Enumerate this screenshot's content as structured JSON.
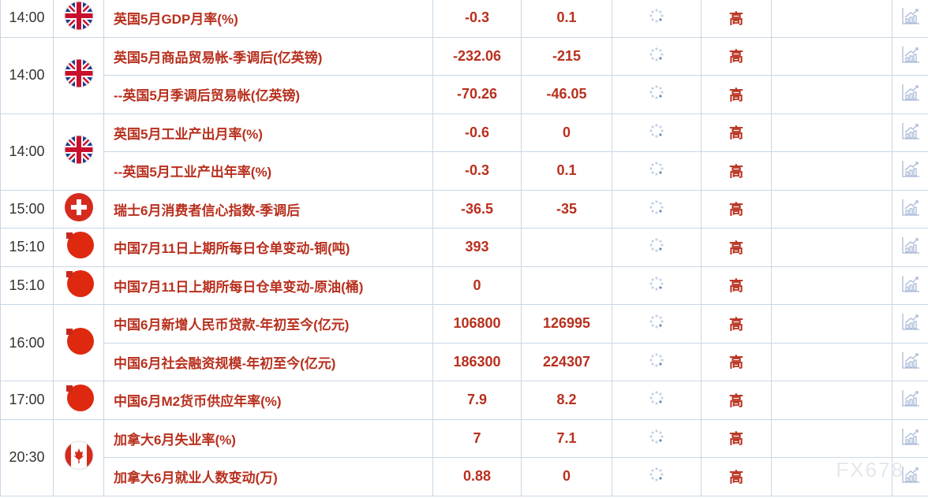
{
  "colors": {
    "accent": "#b8301e",
    "grid": "#c9d7e6"
  },
  "groups": [
    {
      "time": "14:00",
      "flag": "uk-flag-icon",
      "rows": [
        {
          "event": "英国5月GDP月率(%)",
          "previous": "-0.3",
          "forecast": "0.1",
          "importance": "高"
        }
      ]
    },
    {
      "time": "14:00",
      "flag": "uk-flag-icon",
      "rows": [
        {
          "event": "英国5月商品贸易帐-季调后(亿英镑)",
          "previous": "-232.06",
          "forecast": "-215",
          "importance": "高"
        },
        {
          "event": "--英国5月季调后贸易帐(亿英镑)",
          "previous": "-70.26",
          "forecast": "-46.05",
          "importance": "高"
        }
      ]
    },
    {
      "time": "14:00",
      "flag": "uk-flag-icon",
      "rows": [
        {
          "event": "英国5月工业产出月率(%)",
          "previous": "-0.6",
          "forecast": "0",
          "importance": "高"
        },
        {
          "event": "--英国5月工业产出年率(%)",
          "previous": "-0.3",
          "forecast": "0.1",
          "importance": "高"
        }
      ]
    },
    {
      "time": "15:00",
      "flag": "switzerland-flag-icon",
      "rows": [
        {
          "event": "瑞士6月消费者信心指数-季调后",
          "previous": "-36.5",
          "forecast": "-35",
          "importance": "高"
        }
      ]
    },
    {
      "time": "15:10",
      "flag": "china-flag-icon",
      "rows": [
        {
          "event": "中国7月11日上期所每日仓单变动-铜(吨)",
          "previous": "393",
          "forecast": "",
          "importance": "高"
        }
      ]
    },
    {
      "time": "15:10",
      "flag": "china-flag-icon",
      "rows": [
        {
          "event": "中国7月11日上期所每日仓单变动-原油(桶)",
          "previous": "0",
          "forecast": "",
          "importance": "高"
        }
      ]
    },
    {
      "time": "16:00",
      "flag": "china-flag-icon",
      "rows": [
        {
          "event": "中国6月新增人民币贷款-年初至今(亿元)",
          "previous": "106800",
          "forecast": "126995",
          "importance": "高"
        },
        {
          "event": "中国6月社会融资规模-年初至今(亿元)",
          "previous": "186300",
          "forecast": "224307",
          "importance": "高"
        }
      ]
    },
    {
      "time": "17:00",
      "flag": "china-flag-icon",
      "rows": [
        {
          "event": "中国6月M2货币供应年率(%)",
          "previous": "7.9",
          "forecast": "8.2",
          "importance": "高"
        }
      ]
    },
    {
      "time": "20:30",
      "flag": "canada-flag-icon",
      "rows": [
        {
          "event": "加拿大6月失业率(%)",
          "previous": "7",
          "forecast": "7.1",
          "importance": "高"
        },
        {
          "event": "加拿大6月就业人数变动(万)",
          "previous": "0.88",
          "forecast": "0",
          "importance": "高"
        }
      ]
    }
  ],
  "watermark": "FX678"
}
